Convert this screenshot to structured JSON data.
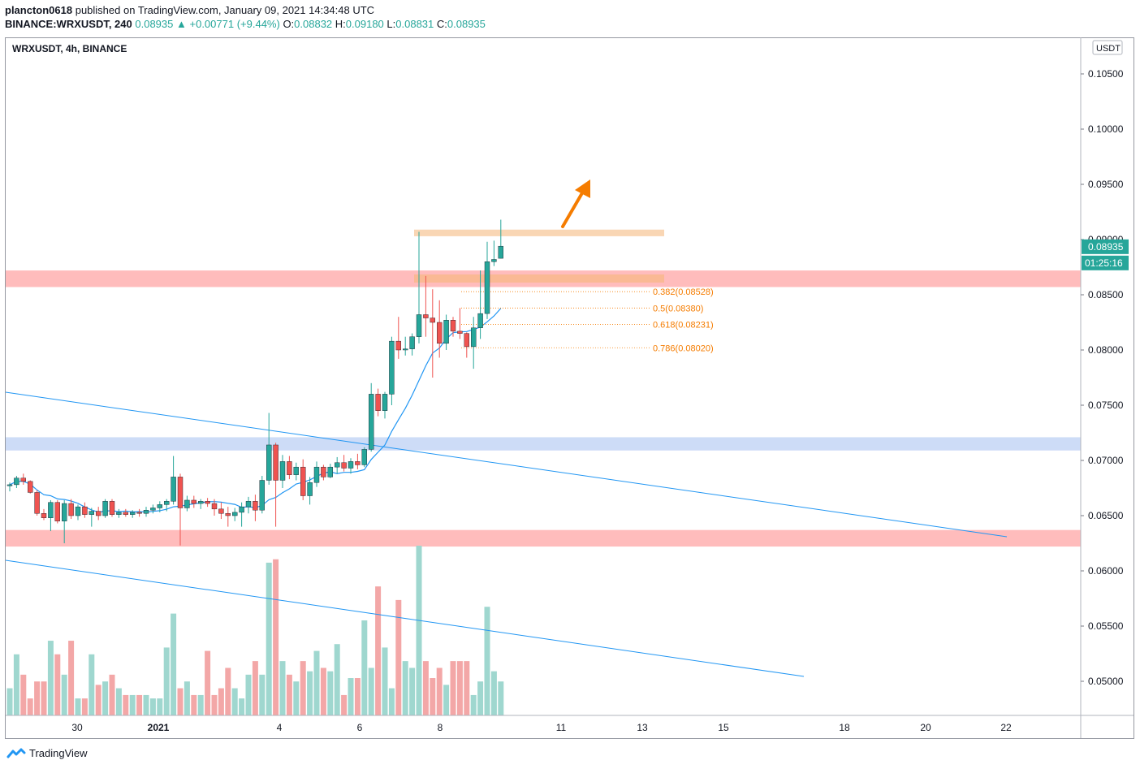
{
  "header": {
    "author": "plancton0618",
    "published": "published on TradingView.com, January 09, 2021 14:34:48 UTC",
    "symbol": "BINANCE:WRXUSDT, 240",
    "last": "0.08935",
    "change": "+0.00771 (+9.44%)",
    "o_label": "O:",
    "o_value": "0.08832",
    "h_label": "H:",
    "h_value": "0.09180",
    "l_label": "L:",
    "l_value": "0.08831",
    "c_label": "C:",
    "c_value": "0.08935"
  },
  "chart_title": "WRXUSDT, 4h, BINANCE",
  "currency": "USDT",
  "price_tag": "0.08935",
  "countdown": "01:25:16",
  "footer_brand": "TradingView",
  "colors": {
    "up": "#26a69a",
    "down": "#ef5350",
    "vol_up": "#9fd7cf",
    "vol_down": "#f3a7a7",
    "ma": "#2196f3",
    "trend": "#2196f3",
    "zone_red": "#ffbcbc",
    "zone_blue": "#cddcf7",
    "zone_orange": "#f9d6b4",
    "fib": "#f57c00",
    "arrow": "#f57c00"
  },
  "chart_data": {
    "type": "candlestick",
    "y_ticks": [
      0.105,
      0.1,
      0.095,
      0.09,
      0.085,
      0.08,
      0.075,
      0.07,
      0.065,
      0.06,
      0.055,
      0.05
    ],
    "y_tick_labels": [
      "0.10500",
      "0.10000",
      "0.09500",
      "0.09000",
      "0.08500",
      "0.08000",
      "0.07500",
      "0.07000",
      "0.06500",
      "0.06000",
      "0.05500",
      "0.05000"
    ],
    "x_ticks": [
      {
        "label": "30",
        "bold": false
      },
      {
        "label": "2021",
        "bold": true
      },
      {
        "label": "4",
        "bold": false
      },
      {
        "label": "6",
        "bold": false
      },
      {
        "label": "8",
        "bold": false
      },
      {
        "label": "11",
        "bold": false
      },
      {
        "label": "13",
        "bold": false
      },
      {
        "label": "15",
        "bold": false
      },
      {
        "label": "18",
        "bold": false
      },
      {
        "label": "20",
        "bold": false
      },
      {
        "label": "22",
        "bold": false
      }
    ],
    "candles": [
      [
        0.0677,
        0.068,
        0.0672,
        0.0678
      ],
      [
        0.0678,
        0.0686,
        0.0675,
        0.0684
      ],
      [
        0.0684,
        0.0688,
        0.0678,
        0.0681
      ],
      [
        0.0681,
        0.0682,
        0.067,
        0.0671
      ],
      [
        0.0671,
        0.0673,
        0.065,
        0.0652
      ],
      [
        0.0652,
        0.0656,
        0.0646,
        0.0648
      ],
      [
        0.0648,
        0.0664,
        0.0636,
        0.0662
      ],
      [
        0.0662,
        0.0664,
        0.0643,
        0.0645
      ],
      [
        0.0645,
        0.0664,
        0.0625,
        0.0661
      ],
      [
        0.0661,
        0.0665,
        0.0647,
        0.065
      ],
      [
        0.065,
        0.066,
        0.0646,
        0.0658
      ],
      [
        0.0658,
        0.0662,
        0.0648,
        0.0651
      ],
      [
        0.0651,
        0.0657,
        0.064,
        0.0654
      ],
      [
        0.0654,
        0.0658,
        0.0646,
        0.065
      ],
      [
        0.065,
        0.0665,
        0.0648,
        0.0663
      ],
      [
        0.0663,
        0.0665,
        0.0649,
        0.0651
      ],
      [
        0.0651,
        0.0656,
        0.0648,
        0.0653
      ],
      [
        0.0653,
        0.0656,
        0.0649,
        0.0651
      ],
      [
        0.0651,
        0.0655,
        0.0648,
        0.0653
      ],
      [
        0.0653,
        0.0656,
        0.0649,
        0.0652
      ],
      [
        0.0652,
        0.0658,
        0.0649,
        0.0655
      ],
      [
        0.0655,
        0.066,
        0.0652,
        0.0657
      ],
      [
        0.0657,
        0.0663,
        0.0653,
        0.066
      ],
      [
        0.066,
        0.0665,
        0.0654,
        0.0663
      ],
      [
        0.0663,
        0.0704,
        0.066,
        0.0685
      ],
      [
        0.0685,
        0.0688,
        0.0623,
        0.0657
      ],
      [
        0.0657,
        0.0668,
        0.0654,
        0.0664
      ],
      [
        0.0664,
        0.0668,
        0.0657,
        0.0661
      ],
      [
        0.0661,
        0.0665,
        0.0656,
        0.0663
      ],
      [
        0.0663,
        0.0666,
        0.0658,
        0.0661
      ],
      [
        0.0661,
        0.0665,
        0.065,
        0.0656
      ],
      [
        0.0656,
        0.0662,
        0.0647,
        0.0652
      ],
      [
        0.0652,
        0.0658,
        0.064,
        0.065
      ],
      [
        0.065,
        0.0657,
        0.0645,
        0.0653
      ],
      [
        0.0653,
        0.0662,
        0.064,
        0.0658
      ],
      [
        0.0658,
        0.0667,
        0.0652,
        0.0663
      ],
      [
        0.0663,
        0.0669,
        0.0645,
        0.0655
      ],
      [
        0.0655,
        0.0686,
        0.0652,
        0.0682
      ],
      [
        0.0682,
        0.0743,
        0.0678,
        0.0714
      ],
      [
        0.0714,
        0.0716,
        0.064,
        0.0682
      ],
      [
        0.0682,
        0.0705,
        0.0675,
        0.0699
      ],
      [
        0.0699,
        0.0704,
        0.0683,
        0.0687
      ],
      [
        0.0687,
        0.0698,
        0.0682,
        0.0694
      ],
      [
        0.0694,
        0.0701,
        0.0664,
        0.0668
      ],
      [
        0.0668,
        0.0685,
        0.066,
        0.068
      ],
      [
        0.068,
        0.0699,
        0.0676,
        0.0694
      ],
      [
        0.0694,
        0.0696,
        0.0682,
        0.0685
      ],
      [
        0.0685,
        0.0697,
        0.0684,
        0.0694
      ],
      [
        0.0694,
        0.0703,
        0.0688,
        0.0698
      ],
      [
        0.0698,
        0.0705,
        0.069,
        0.0693
      ],
      [
        0.0693,
        0.0702,
        0.0688,
        0.0699
      ],
      [
        0.0699,
        0.0706,
        0.0692,
        0.0696
      ],
      [
        0.0696,
        0.0712,
        0.0694,
        0.071
      ],
      [
        0.071,
        0.077,
        0.0708,
        0.076
      ],
      [
        0.076,
        0.0765,
        0.074,
        0.0745
      ],
      [
        0.0745,
        0.0762,
        0.0738,
        0.076
      ],
      [
        0.076,
        0.0812,
        0.075,
        0.0808
      ],
      [
        0.0808,
        0.083,
        0.0792,
        0.08
      ],
      [
        0.08,
        0.0812,
        0.0795,
        0.0801
      ],
      [
        0.0801,
        0.0815,
        0.0795,
        0.0812
      ],
      [
        0.0812,
        0.0907,
        0.0806,
        0.0832
      ],
      [
        0.0832,
        0.0867,
        0.0812,
        0.0829
      ],
      [
        0.0829,
        0.0855,
        0.0775,
        0.0825
      ],
      [
        0.0825,
        0.0845,
        0.0793,
        0.0806
      ],
      [
        0.0806,
        0.0832,
        0.08,
        0.0827
      ],
      [
        0.0827,
        0.083,
        0.0812,
        0.0817
      ],
      [
        0.0817,
        0.0838,
        0.081,
        0.0815
      ],
      [
        0.0815,
        0.0816,
        0.0793,
        0.0803
      ],
      [
        0.0803,
        0.083,
        0.0783,
        0.082
      ],
      [
        0.082,
        0.0872,
        0.081,
        0.0833
      ],
      [
        0.0833,
        0.0898,
        0.0828,
        0.088
      ],
      [
        0.088,
        0.0899,
        0.0876,
        0.0882
      ],
      [
        0.0883,
        0.0918,
        0.0883,
        0.0894
      ]
    ],
    "volume": [
      8,
      18,
      12,
      5,
      10,
      10,
      22,
      18,
      12,
      22,
      5,
      5,
      18,
      9,
      10,
      12,
      8,
      6,
      6,
      6,
      6,
      5,
      5,
      20,
      30,
      8,
      10,
      6,
      6,
      19,
      6,
      8,
      14,
      8,
      5,
      12,
      16,
      12,
      45,
      46,
      16,
      12,
      10,
      16,
      13,
      19,
      14,
      13,
      21,
      6,
      11,
      11,
      28,
      14,
      38,
      20,
      8,
      34,
      16,
      14,
      50,
      16,
      11,
      14,
      9,
      16,
      16,
      16,
      6,
      10,
      32,
      13,
      10
    ],
    "ma_line": [
      [
        0.0668,
        5
      ],
      [
        0.0669,
        10
      ],
      [
        0.0666,
        15
      ],
      [
        0.0663,
        20
      ],
      [
        0.0661,
        26
      ],
      [
        0.066,
        32
      ],
      [
        0.0659,
        38
      ],
      [
        0.0658,
        44
      ],
      [
        0.0657,
        50
      ],
      [
        0.0657,
        56
      ],
      [
        0.0656,
        62
      ],
      [
        0.0656,
        68
      ]
    ],
    "horizontal_zones": [
      {
        "kind": "resistance",
        "from": 0.0857,
        "to": 0.0872,
        "color": "zone_red",
        "extent": "full"
      },
      {
        "kind": "support",
        "from": 0.0622,
        "to": 0.0637,
        "color": "zone_red",
        "extent": "full"
      },
      {
        "kind": "support",
        "from": 0.0709,
        "to": 0.0721,
        "color": "zone_blue",
        "extent": "full"
      },
      {
        "kind": "target",
        "from": 0.0903,
        "to": 0.0909,
        "color": "zone_orange",
        "extent": "partial"
      }
    ],
    "fib_levels": [
      {
        "label": "0.382(0.08528)",
        "value": 0.08528
      },
      {
        "label": "0.5(0.08380)",
        "value": 0.0838
      },
      {
        "label": "0.618(0.08231)",
        "value": 0.08231
      },
      {
        "label": "0.786(0.08020)",
        "value": 0.0802
      }
    ]
  }
}
